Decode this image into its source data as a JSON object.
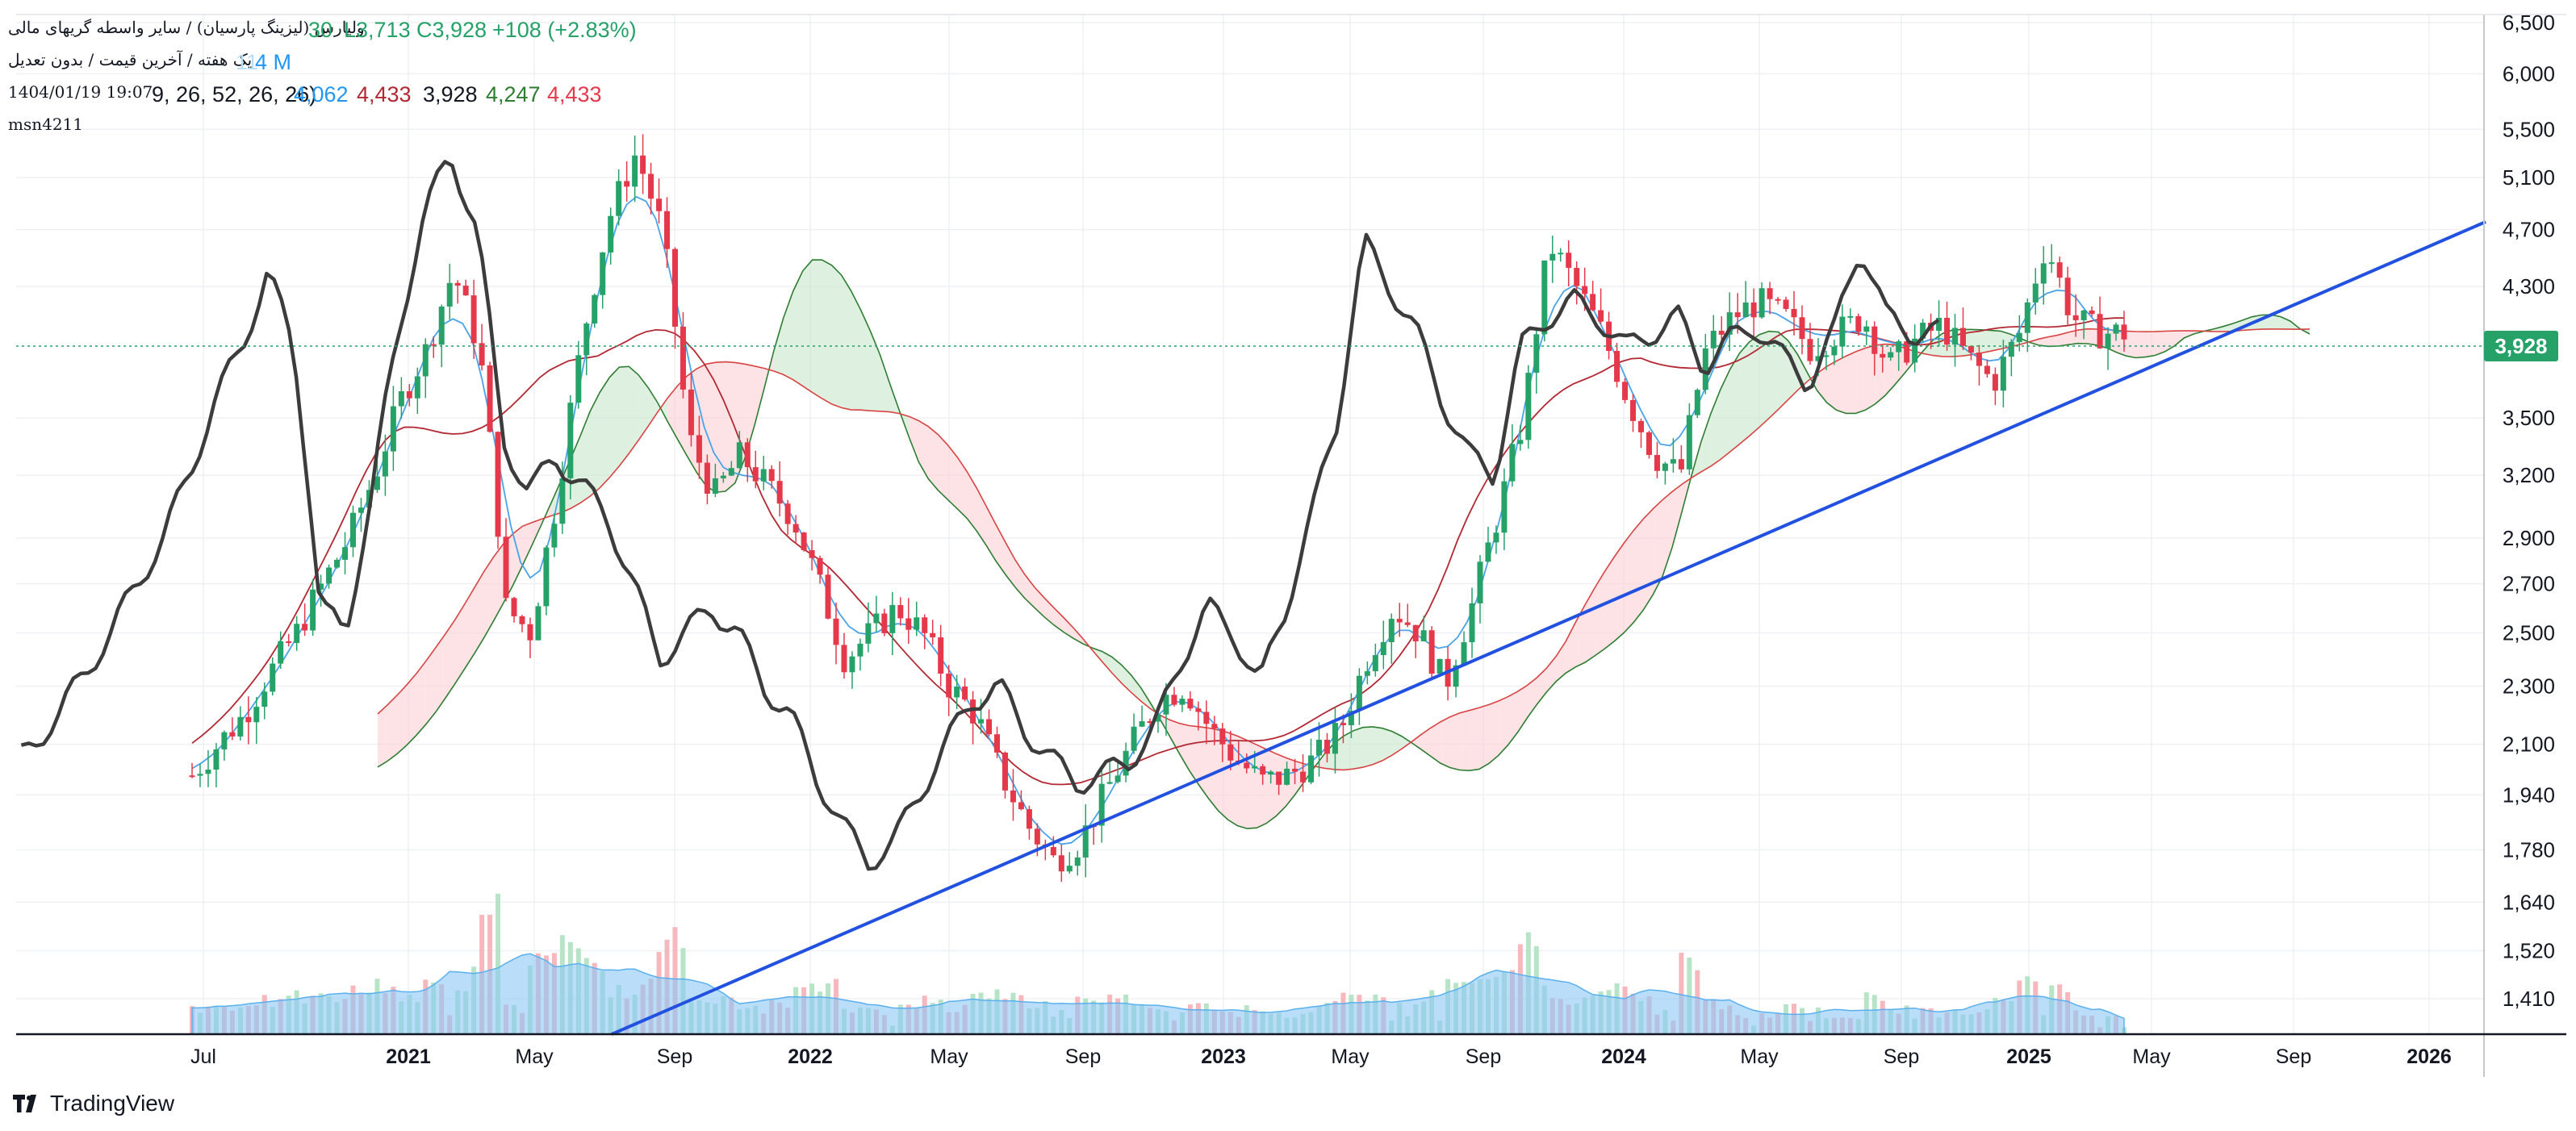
{
  "header": {
    "symbol_line": "ولپارس (لیزینگ پارسیان) / سایر واسطه گریهای مالی",
    "low": "L3,713",
    "close": "C3,928",
    "change": "+108 (+2.83%)",
    "fragment": "30",
    "period_line": "یک هفته / آخرین قیمت / بدون تعدیل",
    "volume": "4 M",
    "volume_fragment": "11",
    "datetime": "1404/01/19 19:07",
    "ichimoku_params": "9, 26, 52, 26, 26)",
    "ichimoku_values": [
      "4,062",
      "4,433",
      "3,928",
      "4,247",
      "4,433"
    ],
    "author": "msn4211"
  },
  "brand": "TradingView",
  "colors": {
    "up": "#26a269",
    "down": "#e5394b",
    "tenkan": "#4aa3e8",
    "kijun": "#b22833",
    "lagging": "#3c3c3c",
    "spanA": "#2e7d32",
    "spanB": "#d84343",
    "trend": "#2251e0",
    "vol_up": "#b7e4c7",
    "vol_down": "#f6b7bd",
    "vol_ma": "#70bdf2"
  },
  "chart_data": {
    "type": "candlestick",
    "y_axis_ticks": [
      1410,
      1520,
      1640,
      1780,
      1940,
      2100,
      2300,
      2500,
      2700,
      2900,
      3200,
      3500,
      4300,
      4700,
      5100,
      5500,
      6000,
      6500
    ],
    "y_scale": "log",
    "x_axis_labels": [
      "Jul",
      "2021",
      "May",
      "Sep",
      "2022",
      "May",
      "Sep",
      "2023",
      "May",
      "Sep",
      "2024",
      "May",
      "Sep",
      "2025",
      "May",
      "Sep",
      "2026"
    ],
    "last_price": "3,928",
    "series": {
      "price_close_points": [
        [
          0,
          2000
        ],
        [
          1,
          2100
        ],
        [
          2,
          2200
        ],
        [
          3,
          2350
        ],
        [
          4,
          2500
        ],
        [
          5,
          2700
        ],
        [
          6,
          2900
        ],
        [
          7,
          3200
        ],
        [
          8,
          3600
        ],
        [
          9,
          3900
        ],
        [
          10,
          4400
        ],
        [
          11,
          3900
        ],
        [
          12,
          2600
        ],
        [
          13,
          2500
        ],
        [
          14,
          3100
        ],
        [
          15,
          4000
        ],
        [
          16,
          4800
        ],
        [
          17,
          5300
        ],
        [
          18,
          4700
        ],
        [
          19,
          3400
        ],
        [
          20,
          3100
        ],
        [
          21,
          3300
        ],
        [
          22,
          3150
        ],
        [
          23,
          3000
        ],
        [
          24,
          2700
        ],
        [
          25,
          2400
        ],
        [
          26,
          2500
        ],
        [
          27,
          2600
        ],
        [
          28,
          2500
        ],
        [
          29,
          2300
        ],
        [
          30,
          2200
        ],
        [
          31,
          2000
        ],
        [
          32,
          1850
        ],
        [
          33,
          1750
        ],
        [
          34,
          1800
        ],
        [
          35,
          1950
        ],
        [
          36,
          2100
        ],
        [
          37,
          2250
        ],
        [
          38,
          2300
        ],
        [
          39,
          2150
        ],
        [
          40,
          2050
        ],
        [
          41,
          1980
        ],
        [
          42,
          2000
        ],
        [
          43,
          2050
        ],
        [
          44,
          2150
        ],
        [
          45,
          2400
        ],
        [
          46,
          2600
        ],
        [
          47,
          2500
        ],
        [
          48,
          2300
        ],
        [
          49,
          2600
        ],
        [
          50,
          3000
        ],
        [
          51,
          3500
        ],
        [
          52,
          4600
        ],
        [
          53,
          4300
        ],
        [
          54,
          4000
        ],
        [
          55,
          3600
        ],
        [
          56,
          3300
        ],
        [
          57,
          3200
        ],
        [
          58,
          3900
        ],
        [
          59,
          4100
        ],
        [
          60,
          4200
        ],
        [
          61,
          4100
        ],
        [
          62,
          3900
        ],
        [
          63,
          4000
        ],
        [
          64,
          4100
        ],
        [
          65,
          3800
        ],
        [
          66,
          3950
        ],
        [
          67,
          4050
        ],
        [
          68,
          3850
        ],
        [
          69,
          3700
        ],
        [
          70,
          4000
        ],
        [
          71,
          4600
        ],
        [
          72,
          4100
        ],
        [
          73,
          4000
        ],
        [
          74,
          4000
        ]
      ]
    }
  }
}
